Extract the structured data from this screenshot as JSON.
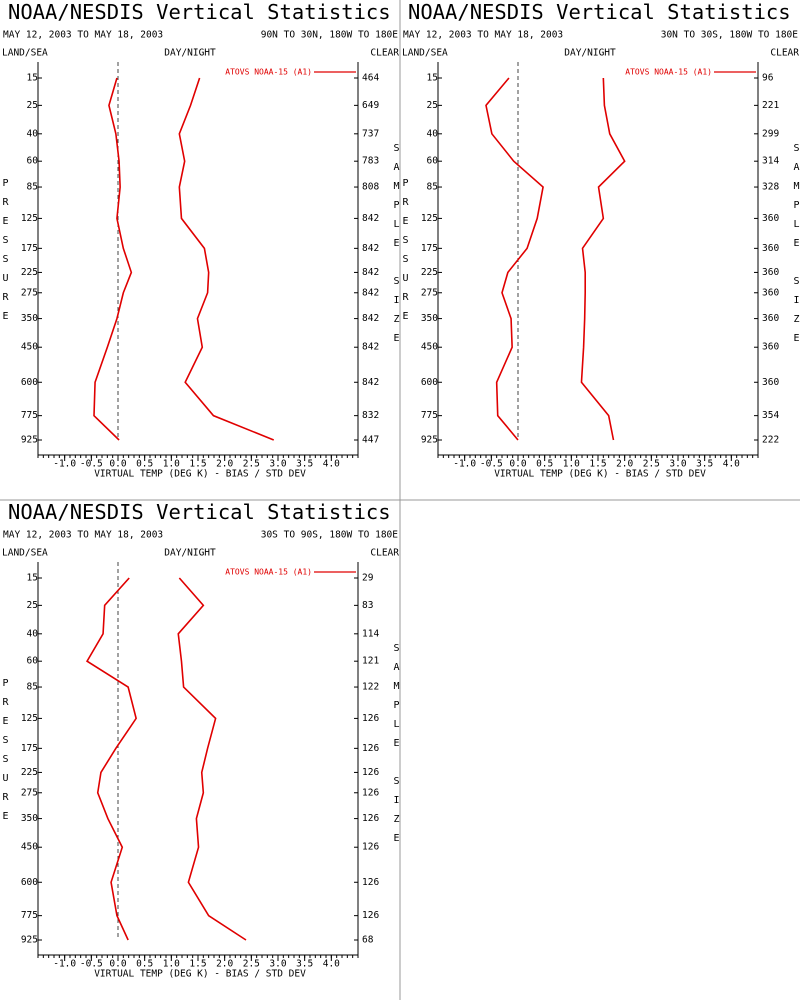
{
  "chart_data": [
    {
      "type": "line",
      "title": "NOAA/NESDIS Vertical Statistics",
      "subtitle": "MAY 12, 2003 TO MAY 18, 2003",
      "region": "90N TO 30N, 180W TO 180E",
      "land_sea": "LAND/SEA",
      "day_night": "DAY/NIGHT",
      "clear": "CLEAR",
      "ylabel": "PRESSURE",
      "y2label": "SAMPLE SIZE",
      "xlabel": "VIRTUAL TEMP (DEG K) - BIAS / STD DEV",
      "legend": "ATOVS NOAA-15 (A1)",
      "legend_loc": "upper right",
      "categories": [
        15,
        25,
        40,
        60,
        85,
        125,
        175,
        225,
        275,
        350,
        450,
        600,
        775,
        925
      ],
      "series": [
        {
          "color": "#e00000",
          "values": [
            -0.02,
            -0.17,
            -0.04,
            0.02,
            0.04,
            -0.02,
            0.1,
            0.25,
            0.1,
            -0.02,
            -0.2,
            -0.43,
            -0.45,
            0.02
          ]
        },
        {
          "color": "#e00000",
          "values": [
            1.53,
            1.36,
            1.15,
            1.25,
            1.15,
            1.19,
            1.62,
            1.7,
            1.68,
            1.49,
            1.58,
            1.26,
            1.79,
            2.92
          ]
        }
      ],
      "sample_size": [
        464,
        649,
        737,
        783,
        808,
        842,
        842,
        842,
        842,
        842,
        842,
        842,
        832,
        447
      ],
      "xlim": [
        -1.5,
        4.5
      ],
      "xticks": [
        {
          "value": -1,
          "label": "-1.0"
        },
        -0.5,
        {
          "value": 0,
          "label": "0.0"
        },
        0.5,
        {
          "value": 1,
          "label": "1.0"
        },
        1.5,
        {
          "value": 2,
          "label": "2.0"
        },
        2.5,
        {
          "value": 3,
          "label": "3.0"
        },
        3.5,
        {
          "value": 4,
          "label": "4.0"
        }
      ]
    },
    {
      "type": "line",
      "title": "NOAA/NESDIS Vertical Statistics",
      "subtitle": "MAY 12, 2003 TO MAY 18, 2003",
      "region": "30N TO 30S, 180W TO 180E",
      "land_sea": "LAND/SEA",
      "day_night": "DAY/NIGHT",
      "clear": "CLEAR",
      "ylabel": "PRESSURE",
      "y2label": "SAMPLE SIZE",
      "xlabel": "VIRTUAL TEMP (DEG K) - BIAS / STD DEV",
      "legend": "ATOVS NOAA-15 (A1)",
      "legend_loc": "upper right",
      "categories": [
        15,
        25,
        40,
        60,
        85,
        125,
        175,
        225,
        275,
        350,
        450,
        600,
        775,
        925
      ],
      "series": [
        {
          "color": "#e00000",
          "values": [
            -0.17,
            -0.6,
            -0.49,
            -0.08,
            0.47,
            0.36,
            0.17,
            -0.19,
            -0.3,
            -0.13,
            -0.11,
            -0.4,
            -0.38,
            0.0
          ]
        },
        {
          "color": "#e00000",
          "values": [
            1.6,
            1.62,
            1.72,
            2.0,
            1.51,
            1.6,
            1.21,
            1.26,
            1.26,
            1.25,
            1.23,
            1.19,
            1.7,
            1.79
          ]
        }
      ],
      "sample_size": [
        96,
        221,
        299,
        314,
        328,
        360,
        360,
        360,
        360,
        360,
        360,
        360,
        354,
        222
      ],
      "xlim": [
        -1.5,
        4.5
      ],
      "xticks": [
        {
          "value": -1,
          "label": "-1.0"
        },
        -0.5,
        {
          "value": 0,
          "label": "0.0"
        },
        0.5,
        {
          "value": 1,
          "label": "1.0"
        },
        1.5,
        {
          "value": 2,
          "label": "2.0"
        },
        2.5,
        {
          "value": 3,
          "label": "3.0"
        },
        3.5,
        {
          "value": 4,
          "label": "4.0"
        }
      ]
    },
    {
      "type": "line",
      "title": "NOAA/NESDIS Vertical Statistics",
      "subtitle": "MAY 12, 2003 TO MAY 18, 2003",
      "region": "30S TO 90S, 180W TO 180E",
      "land_sea": "LAND/SEA",
      "day_night": "DAY/NIGHT",
      "clear": "CLEAR",
      "ylabel": "PRESSURE",
      "y2label": "SAMPLE SIZE",
      "xlabel": "VIRTUAL TEMP (DEG K) - BIAS / STD DEV",
      "legend": "ATOVS NOAA-15 (A1)",
      "legend_loc": "upper right",
      "categories": [
        15,
        25,
        40,
        60,
        85,
        125,
        175,
        225,
        275,
        350,
        450,
        600,
        775,
        925
      ],
      "series": [
        {
          "color": "#e00000",
          "values": [
            0.21,
            -0.25,
            -0.28,
            -0.58,
            0.19,
            0.34,
            -0.04,
            -0.32,
            -0.38,
            -0.19,
            0.08,
            -0.13,
            -0.02,
            0.19
          ]
        },
        {
          "color": "#e00000",
          "values": [
            1.15,
            1.6,
            1.13,
            1.19,
            1.23,
            1.83,
            1.68,
            1.57,
            1.6,
            1.47,
            1.51,
            1.32,
            1.7,
            2.4
          ]
        }
      ],
      "sample_size": [
        29,
        83,
        114,
        121,
        122,
        126,
        126,
        126,
        126,
        126,
        126,
        126,
        126,
        68
      ],
      "xlim": [
        -1.5,
        4.5
      ],
      "xticks": [
        {
          "value": -1,
          "label": "-1.0"
        },
        -0.5,
        {
          "value": 0,
          "label": "0.0"
        },
        0.5,
        {
          "value": 1,
          "label": "1.0"
        },
        1.5,
        {
          "value": 2,
          "label": "2.0"
        },
        2.5,
        {
          "value": 3,
          "label": "3.0"
        },
        3.5,
        {
          "value": 4,
          "label": "4.0"
        }
      ]
    }
  ]
}
